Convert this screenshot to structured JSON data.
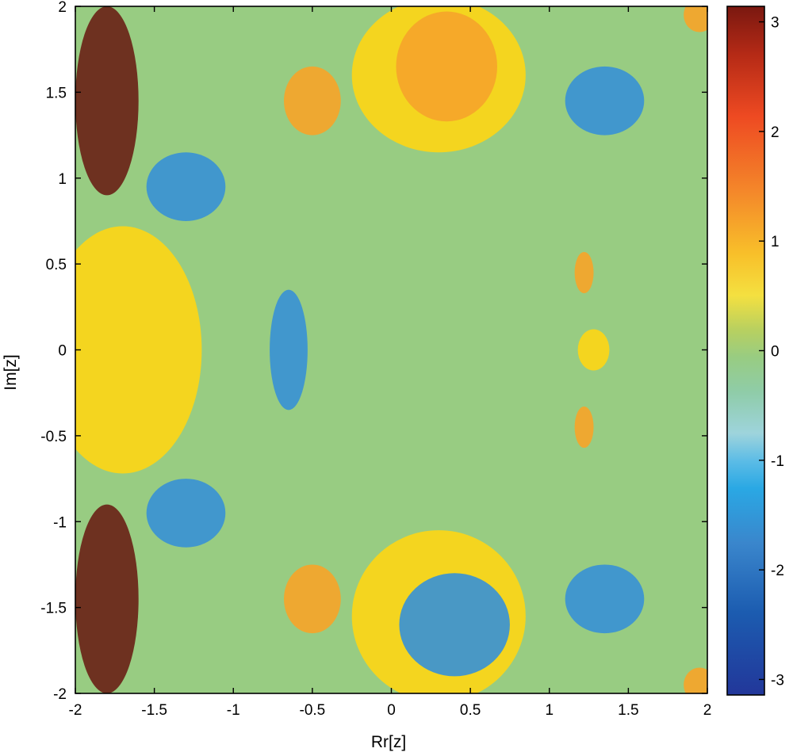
{
  "chart_data": {
    "type": "heatmap",
    "title": "",
    "xlabel": "Rr[z]",
    "ylabel": "Im[z]",
    "xlim": [
      -2,
      2
    ],
    "ylim": [
      -2,
      2
    ],
    "x_ticks": [
      -2,
      -1.5,
      -1,
      -0.5,
      0,
      0.5,
      1,
      1.5,
      2
    ],
    "x_tick_labels": [
      "-2",
      "-1.5",
      "-1",
      "-0.5",
      "0",
      "0.5",
      "1",
      "1.5",
      "2"
    ],
    "y_ticks": [
      2,
      1.5,
      1,
      0.5,
      0,
      -0.5,
      -1,
      -1.5,
      -2
    ],
    "y_tick_labels": [
      "2",
      "1.5",
      "1",
      "0.5",
      "0",
      "-0.5",
      "-1",
      "-1.5",
      "-2"
    ],
    "colorbar": {
      "range": [
        -3.14159,
        3.14159
      ],
      "ticks": [
        3,
        2,
        1,
        0,
        -1,
        -2,
        -3
      ],
      "tick_labels": [
        "3",
        "2",
        "1",
        "0",
        "-1",
        "-2",
        "-3"
      ],
      "colormap": "jet (argument of z)"
    },
    "colors": {
      "background": "#98cc82",
      "basin_yellow": "#fcd617",
      "basin_orange": "#f5a52a",
      "basin_blue": "#3a92d4",
      "fractal_dark": "#6a2418",
      "axis": "#000000"
    },
    "regions": [
      {
        "name": "left-main-basin",
        "color": "basin_yellow",
        "center": [
          -1.7,
          0
        ],
        "rx": 0.5,
        "ry": 0.72
      },
      {
        "name": "top-basin",
        "color": "basin_yellow",
        "center": [
          0.3,
          1.6
        ],
        "rx": 0.55,
        "ry": 0.45
      },
      {
        "name": "top-basin-core",
        "color": "basin_orange",
        "center": [
          0.35,
          1.65
        ],
        "rx": 0.32,
        "ry": 0.32
      },
      {
        "name": "bottom-basin",
        "color": "basin_yellow",
        "center": [
          0.3,
          -1.55
        ],
        "rx": 0.55,
        "ry": 0.5
      },
      {
        "name": "bottom-basin-core",
        "color": "basin_blue",
        "center": [
          0.4,
          -1.6
        ],
        "rx": 0.35,
        "ry": 0.3
      },
      {
        "name": "small-island-0",
        "color": "basin_yellow",
        "center": [
          1.28,
          0
        ],
        "rx": 0.1,
        "ry": 0.12
      },
      {
        "name": "small-island-up",
        "color": "basin_orange",
        "center": [
          1.22,
          0.45
        ],
        "rx": 0.06,
        "ry": 0.12
      },
      {
        "name": "small-island-down",
        "color": "basin_orange",
        "center": [
          1.22,
          -0.45
        ],
        "rx": 0.06,
        "ry": 0.12
      },
      {
        "name": "left-edge-upper",
        "color": "fractal_dark",
        "center": [
          -1.8,
          1.45
        ],
        "rx": 0.2,
        "ry": 0.55
      },
      {
        "name": "left-edge-lower",
        "color": "fractal_dark",
        "center": [
          -1.8,
          -1.45
        ],
        "rx": 0.2,
        "ry": 0.55
      },
      {
        "name": "left-mid-upper",
        "color": "basin_blue",
        "center": [
          -1.3,
          0.95
        ],
        "rx": 0.25,
        "ry": 0.2
      },
      {
        "name": "left-mid-lower",
        "color": "basin_blue",
        "center": [
          -1.3,
          -0.95
        ],
        "rx": 0.25,
        "ry": 0.2
      },
      {
        "name": "neck",
        "color": "basin_blue",
        "center": [
          -0.65,
          0
        ],
        "rx": 0.12,
        "ry": 0.35
      },
      {
        "name": "upper-small-cluster",
        "color": "basin_orange",
        "center": [
          -0.5,
          1.45
        ],
        "rx": 0.18,
        "ry": 0.2
      },
      {
        "name": "lower-small-cluster",
        "color": "basin_orange",
        "center": [
          -0.5,
          -1.45
        ],
        "rx": 0.18,
        "ry": 0.2
      },
      {
        "name": "top-right-spiral",
        "color": "basin_blue",
        "center": [
          1.35,
          1.45
        ],
        "rx": 0.25,
        "ry": 0.2
      },
      {
        "name": "bottom-right-spiral",
        "color": "basin_blue",
        "center": [
          1.35,
          -1.45
        ],
        "rx": 0.25,
        "ry": 0.2
      },
      {
        "name": "top-right-corner",
        "color": "basin_orange",
        "center": [
          1.95,
          1.95
        ],
        "rx": 0.1,
        "ry": 0.1
      },
      {
        "name": "bottom-right-corner",
        "color": "basin_orange",
        "center": [
          1.95,
          -1.95
        ],
        "rx": 0.1,
        "ry": 0.1
      }
    ]
  }
}
